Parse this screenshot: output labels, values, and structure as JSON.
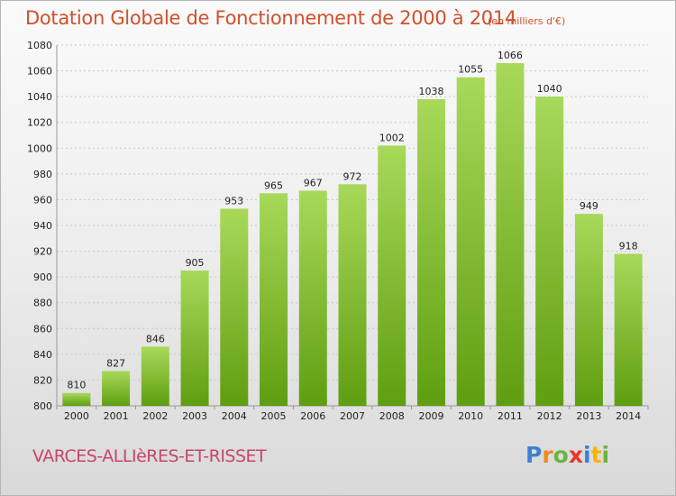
{
  "header": {
    "title": "Dotation Globale de Fonctionnement de 2000 à 2014",
    "unit_note": "(en milliers d'€)"
  },
  "footer": {
    "commune": "VARCES-ALLIèRES-ET-RISSET",
    "logo_letters": [
      {
        "char": "P",
        "color": "#3f7fd0"
      },
      {
        "char": "r",
        "color": "#f28a1c"
      },
      {
        "char": "o",
        "color": "#6cb33f"
      },
      {
        "char": "x",
        "color": "#e8392b"
      },
      {
        "char": "i",
        "color": "#3f7fd0"
      },
      {
        "char": "t",
        "color": "#f5b400"
      },
      {
        "char": "i",
        "color": "#6cb33f"
      }
    ]
  },
  "chart_data": {
    "type": "bar",
    "categories": [
      "2000",
      "2001",
      "2002",
      "2003",
      "2004",
      "2005",
      "2006",
      "2007",
      "2008",
      "2009",
      "2010",
      "2011",
      "2012",
      "2013",
      "2014"
    ],
    "values": [
      810,
      827,
      846,
      905,
      953,
      965,
      967,
      972,
      1002,
      1038,
      1055,
      1066,
      1040,
      949,
      918
    ],
    "ylim": [
      800,
      1080
    ],
    "yticks": [
      800,
      820,
      840,
      860,
      880,
      900,
      920,
      940,
      960,
      980,
      1000,
      1020,
      1040,
      1060,
      1080
    ],
    "grid": true,
    "bar_color_top": "#a8d95a",
    "bar_color_bottom": "#5f9e10"
  }
}
